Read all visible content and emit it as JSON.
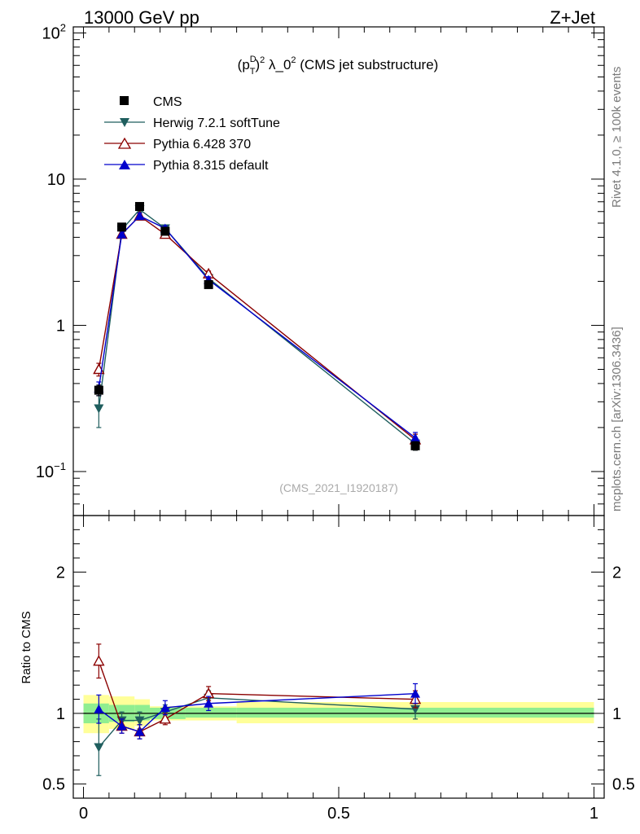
{
  "header": {
    "left": "13000 GeV pp",
    "right": "Z+Jet"
  },
  "side_notes": {
    "rivet": "Rivet 4.1.0, ≥ 100k events",
    "mcplots": "mcplots.cern.ch [arXiv:1306.3436]"
  },
  "colors": {
    "cms": "#000000",
    "herwig": "#1f5e5e",
    "pythia6": "#8b0000",
    "pythia8": "#0000cc",
    "band_inner": "#90ee90",
    "band_outer": "#ffff99"
  },
  "chart_data": [
    {
      "type": "line",
      "panel": "main",
      "title_parts": {
        "p": "(p",
        "sup": "D",
        "sub": "T",
        "exp": "2",
        "rest": " λ_0",
        "exp2": "2",
        "tail": " (CMS jet substructure)"
      },
      "watermark": "(CMS_2021_I1920187)",
      "yscale": "log",
      "xlim": [
        -0.02,
        1.02
      ],
      "ylim": [
        0.05,
        110
      ],
      "yticks": [
        {
          "value": 0.1,
          "base": "10",
          "exp": "−1"
        },
        {
          "value": 1,
          "base": "1",
          "exp": ""
        },
        {
          "value": 10,
          "base": "10",
          "exp": ""
        },
        {
          "value": 100,
          "base": "10",
          "exp": "2"
        }
      ],
      "legend_position": "top-left",
      "series": [
        {
          "name": "CMS",
          "key": "cms",
          "marker": "square",
          "x": [
            0.03,
            0.075,
            0.11,
            0.16,
            0.245,
            0.65
          ],
          "y": [
            0.36,
            4.7,
            6.5,
            4.4,
            1.9,
            0.15
          ],
          "err": [
            0.03,
            0.2,
            0.25,
            0.15,
            0.08,
            0.01
          ]
        },
        {
          "name": "Herwig 7.2.1 softTune",
          "key": "herwig",
          "marker": "triangle-down",
          "x": [
            0.03,
            0.075,
            0.11,
            0.16,
            0.245,
            0.65
          ],
          "y": [
            0.27,
            4.5,
            6.2,
            4.6,
            2.1,
            0.155
          ],
          "err": [
            0.07,
            0.2,
            0.25,
            0.2,
            0.1,
            0.015
          ]
        },
        {
          "name": "Pythia 6.428 370",
          "key": "pythia6",
          "marker": "triangle-up-open",
          "x": [
            0.03,
            0.075,
            0.11,
            0.16,
            0.245,
            0.65
          ],
          "y": [
            0.5,
            4.2,
            5.6,
            4.2,
            2.25,
            0.165
          ],
          "err": [
            0.05,
            0.2,
            0.25,
            0.15,
            0.1,
            0.015
          ]
        },
        {
          "name": "Pythia 8.315 default",
          "key": "pythia8",
          "marker": "triangle-up",
          "x": [
            0.03,
            0.075,
            0.11,
            0.16,
            0.245,
            0.65
          ],
          "y": [
            0.37,
            4.2,
            5.6,
            4.6,
            2.05,
            0.17
          ],
          "err": [
            0.04,
            0.2,
            0.25,
            0.2,
            0.1,
            0.015
          ]
        }
      ]
    },
    {
      "type": "line",
      "panel": "ratio",
      "ylabel": "Ratio to CMS",
      "xlim": [
        -0.02,
        1.02
      ],
      "ylim": [
        0.4,
        2.4
      ],
      "xticks": [
        {
          "value": 0,
          "label": "0"
        },
        {
          "value": 0.5,
          "label": "0.5"
        },
        {
          "value": 1,
          "label": "1"
        }
      ],
      "yticks": [
        {
          "value": 0.5,
          "label": "0.5"
        },
        {
          "value": 1,
          "label": "1"
        },
        {
          "value": 2,
          "label": "2"
        }
      ],
      "band": {
        "edges": [
          0,
          0.05,
          0.1,
          0.13,
          0.2,
          0.3,
          1.0
        ],
        "inner_lo": [
          0.93,
          0.94,
          0.95,
          0.96,
          0.97,
          0.97
        ],
        "inner_hi": [
          1.07,
          1.06,
          1.06,
          1.04,
          1.04,
          1.04
        ],
        "outer_lo": [
          0.86,
          0.89,
          0.91,
          0.95,
          0.95,
          0.93
        ],
        "outer_hi": [
          1.13,
          1.12,
          1.1,
          1.05,
          1.05,
          1.08
        ]
      },
      "series": [
        {
          "name": "Herwig 7.2.1 softTune",
          "key": "herwig",
          "marker": "triangle-down",
          "x": [
            0.03,
            0.075,
            0.11,
            0.16,
            0.245,
            0.65
          ],
          "y": [
            0.76,
            0.95,
            0.95,
            1.01,
            1.11,
            1.03
          ],
          "err": [
            0.2,
            0.06,
            0.06,
            0.05,
            0.05,
            0.07
          ]
        },
        {
          "name": "Pythia 6.428 370",
          "key": "pythia6",
          "marker": "triangle-up-open",
          "x": [
            0.03,
            0.075,
            0.11,
            0.16,
            0.245,
            0.65
          ],
          "y": [
            1.37,
            0.91,
            0.87,
            0.96,
            1.14,
            1.1
          ],
          "err": [
            0.12,
            0.05,
            0.05,
            0.04,
            0.05,
            0.06
          ]
        },
        {
          "name": "Pythia 8.315 default",
          "key": "pythia8",
          "marker": "triangle-up",
          "x": [
            0.03,
            0.075,
            0.11,
            0.16,
            0.245,
            0.65
          ],
          "y": [
            1.03,
            0.91,
            0.87,
            1.04,
            1.07,
            1.14
          ],
          "err": [
            0.1,
            0.05,
            0.05,
            0.05,
            0.05,
            0.07
          ]
        }
      ]
    }
  ]
}
